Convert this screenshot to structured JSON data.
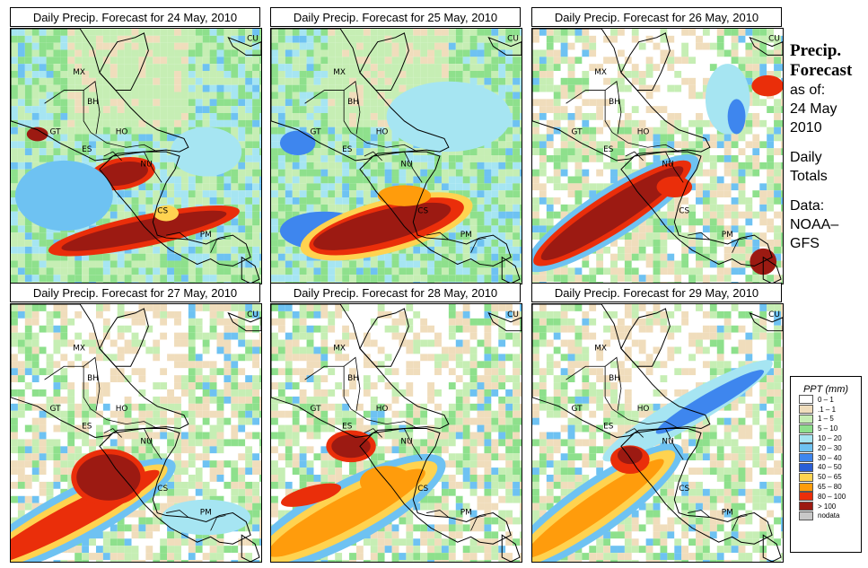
{
  "panels": [
    {
      "title": "Daily Precip. Forecast for  24 May, 2010",
      "day": "24"
    },
    {
      "title": "Daily Precip. Forecast for  25 May, 2010",
      "day": "25"
    },
    {
      "title": "Daily Precip. Forecast for  26 May, 2010",
      "day": "26"
    },
    {
      "title": "Daily Precip. Forecast for  27 May, 2010",
      "day": "27"
    },
    {
      "title": "Daily Precip. Forecast for  28 May, 2010",
      "day": "28"
    },
    {
      "title": "Daily Precip. Forecast for  29 May, 2010",
      "day": "29"
    }
  ],
  "country_labels": [
    "MX",
    "GT",
    "BH",
    "HO",
    "ES",
    "NU",
    "CS",
    "PM",
    "CU"
  ],
  "sidebar": {
    "title_line1": "Precip.",
    "title_line2": "Forecast",
    "asof_line1": "as of:",
    "asof_line2": "24 May",
    "asof_line3": "2010",
    "daily_line1": "Daily",
    "daily_line2": "Totals",
    "data_line1": "Data:",
    "data_line2": "NOAA–",
    "data_line3": "GFS"
  },
  "legend": {
    "title": "PPT (mm)",
    "items": [
      {
        "label": "0 – 1",
        "color": "#ffffff"
      },
      {
        "label": ".1 – 1",
        "color": "#f0ddbc"
      },
      {
        "label": "1 – 5",
        "color": "#c6eeb4"
      },
      {
        "label": "5 – 10",
        "color": "#8ee08c"
      },
      {
        "label": "10 – 20",
        "color": "#a6e5f2"
      },
      {
        "label": "20 – 30",
        "color": "#6ec2f2"
      },
      {
        "label": "30 – 40",
        "color": "#3e86ee"
      },
      {
        "label": "40 – 50",
        "color": "#2a5ed6"
      },
      {
        "label": "50 – 65",
        "color": "#ffd350"
      },
      {
        "label": "65 – 80",
        "color": "#ff9c0c"
      },
      {
        "label": "80 – 100",
        "color": "#ea2e0a"
      },
      {
        "label": "> 100",
        "color": "#9c1a12"
      },
      {
        "label": "nodata",
        "color": "#c8c8c8"
      }
    ]
  }
}
